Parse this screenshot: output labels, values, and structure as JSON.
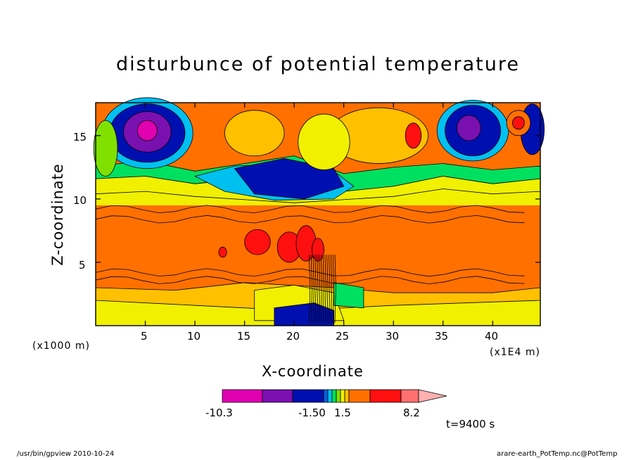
{
  "chart_data": {
    "type": "heatmap",
    "title": "disturbunce of potential temperature",
    "xlabel": "X-coordinate",
    "ylabel": "Z-coordinate",
    "x_unit_left": "(x1000 m)",
    "x_unit_right": "(x1E4 m)",
    "xlim": [
      0,
      44.8
    ],
    "ylim": [
      0,
      17.6
    ],
    "x_ticks": [
      "5",
      "10",
      "15",
      "20",
      "25",
      "30",
      "35",
      "40"
    ],
    "y_ticks": [
      "5",
      "10",
      "15"
    ],
    "colorbar": {
      "labels": [
        "-10.3",
        "-1.50",
        "1.5",
        "8.2"
      ],
      "colors": [
        "#e000b0",
        "#7a10b0",
        "#0010b0",
        "#0060e0",
        "#00c0f0",
        "#00e060",
        "#80e000",
        "#f0f000",
        "#ffc000",
        "#ff7000",
        "#ff1010",
        "#ff7070",
        "#ffb0b0"
      ]
    },
    "time_label": "t=9400 s",
    "bands": [
      {
        "z": [
          0,
          2
        ],
        "level": "yellow-orange"
      },
      {
        "z": [
          2,
          9.5
        ],
        "level": "orange"
      },
      {
        "z": [
          9.5,
          12
        ],
        "level": "yellow-green"
      },
      {
        "z": [
          12,
          17.6
        ],
        "level": "mixed"
      }
    ]
  },
  "footer": {
    "left": "/usr/bin/gpview   2010-10-24",
    "right": "arare-earth_PotTemp.nc@PotTemp"
  }
}
